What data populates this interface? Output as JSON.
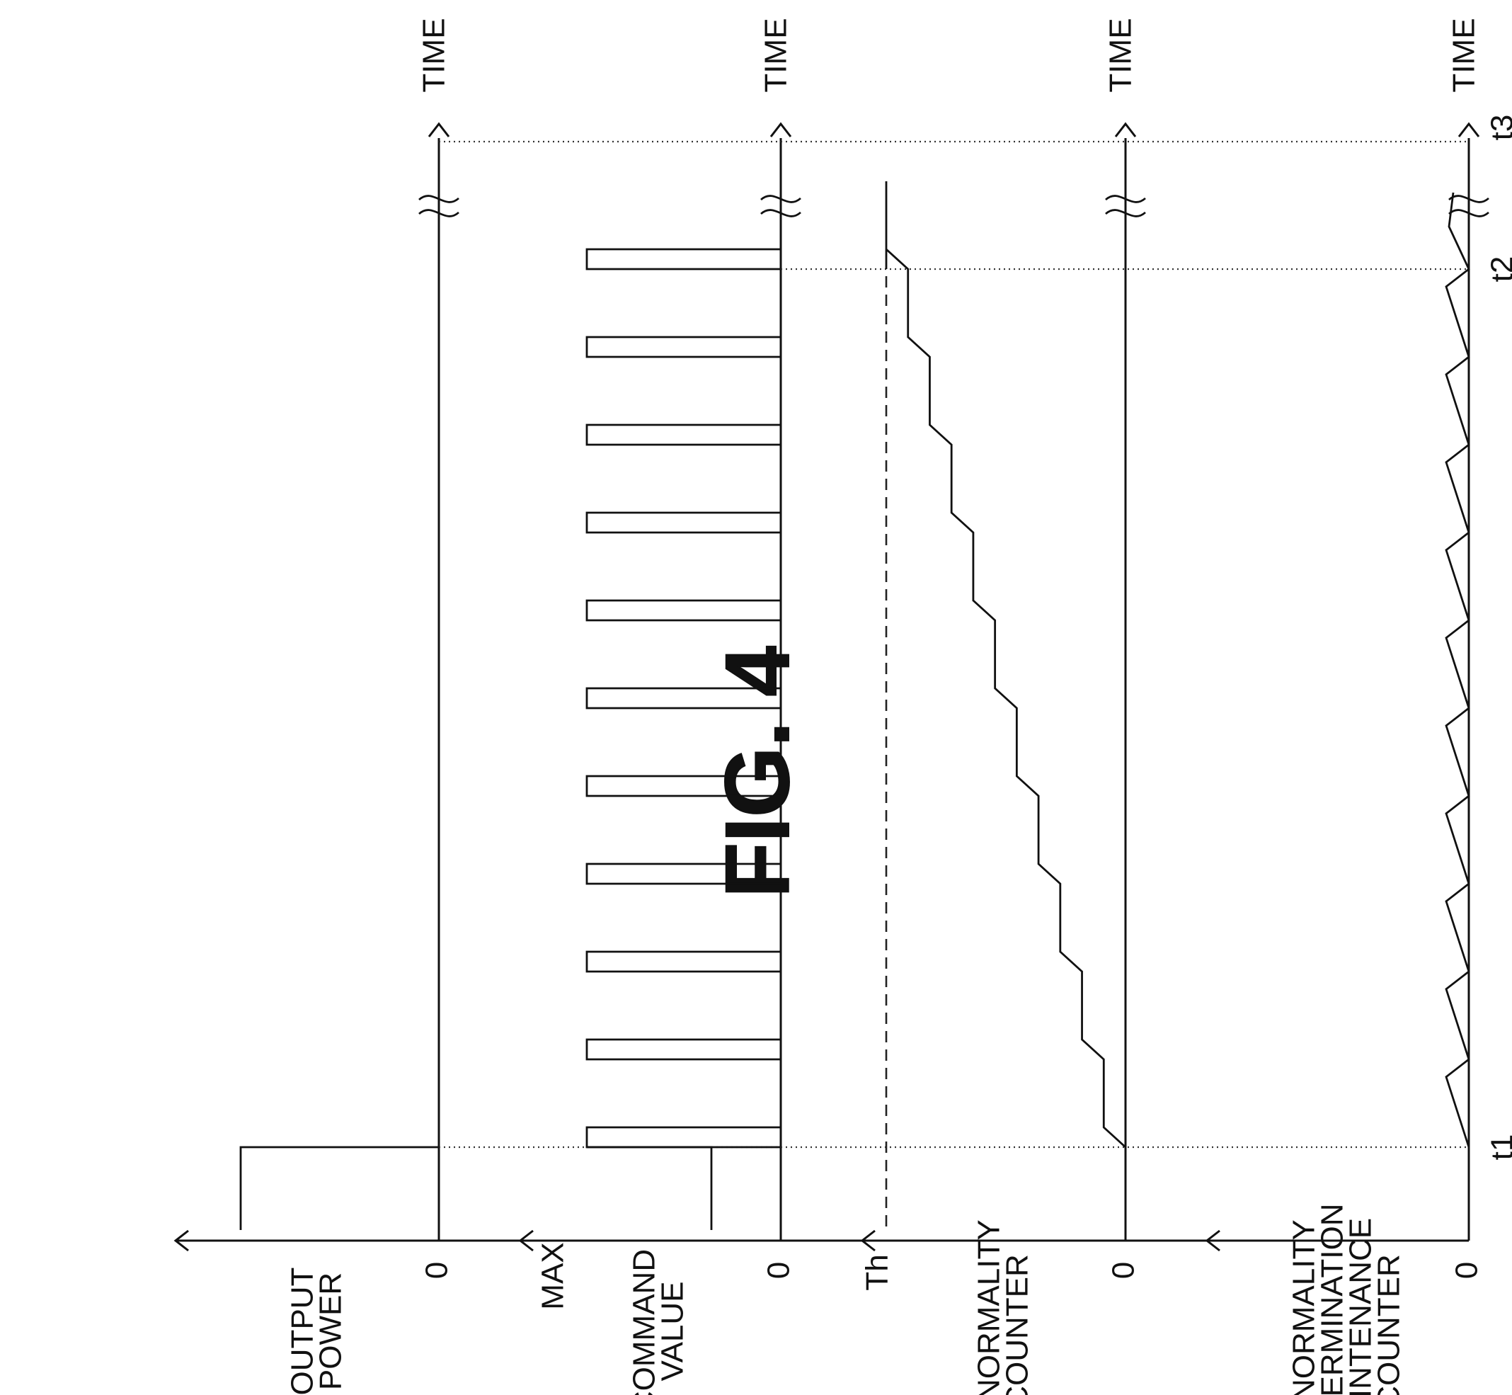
{
  "figure": {
    "title": "FIG. 4",
    "time_label": "TIME",
    "zero_label": "0",
    "max_label": "MAX",
    "th_label": "Th",
    "time_markers": [
      "t1",
      "t2",
      "t3"
    ],
    "traces": [
      {
        "id": "output-power",
        "lines": [
          "OUTPUT",
          "POWER"
        ]
      },
      {
        "id": "command-value",
        "lines": [
          "COMMAND",
          "VALUE"
        ]
      },
      {
        "id": "abnormality-counter",
        "lines": [
          "ABNORMALITY",
          "COUNTER"
        ]
      },
      {
        "id": "maintenance-counter",
        "lines": [
          "ABNORMALITY",
          "DETERMINATION",
          "MAINTENANCE",
          "COUNTER"
        ]
      }
    ],
    "command_pulse_count": 11,
    "abnormality_counter_steps": 11
  }
}
